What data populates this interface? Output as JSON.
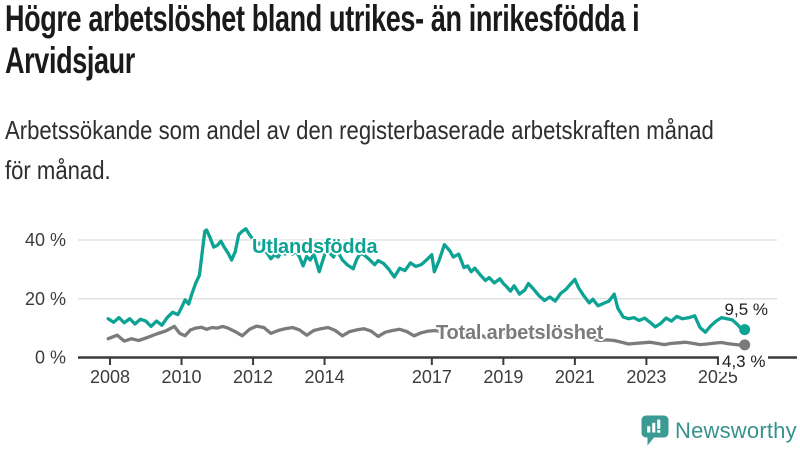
{
  "header": {
    "title": "Högre arbetslöshet bland utrikes- än inrikesfödda i\nArvidsjaur",
    "subtitle": "Arbetssökande som andel av den registerbaserade arbetskraften månad\nför månad."
  },
  "footer": {
    "brand": "Newsworthy",
    "logo_icon": "bar-chart-speech-bubble-icon"
  },
  "colors": {
    "accent_teal": "#0DA394",
    "series_gray": "#7B7B7B",
    "grid": "#dcdcdc",
    "axis": "#3A3A3A",
    "axis_text": "#3c3c3c",
    "logo_teal": "#3B9A93"
  },
  "chart_data": {
    "type": "line",
    "title": "Högre arbetslöshet bland utrikes- än inrikesfödda i Arvidsjaur",
    "subtitle": "Arbetssökande som andel av den registerbaserade arbetskraften månad för månad.",
    "grid": "horizontal",
    "legend_position": "inline-labels",
    "x_axis": {
      "unit": "year",
      "ticks": [
        2008,
        2010,
        2012,
        2014,
        2017,
        2019,
        2021,
        2023,
        2025
      ],
      "range": [
        2007.6,
        2025.9
      ]
    },
    "y_axis": {
      "unit": "%",
      "ticks": [
        {
          "value": 0,
          "label": "0 %"
        },
        {
          "value": 20,
          "label": "20 %"
        },
        {
          "value": 40,
          "label": "40 %"
        }
      ],
      "range": [
        0,
        46
      ]
    },
    "series": [
      {
        "name": "Utlandsfödda",
        "color": "#0DA394",
        "end_label": "9,5 %",
        "last_value": 9.5,
        "points": [
          [
            2007.95,
            13.2
          ],
          [
            2008.1,
            12.0
          ],
          [
            2008.25,
            13.6
          ],
          [
            2008.4,
            11.8
          ],
          [
            2008.55,
            13.2
          ],
          [
            2008.7,
            11.4
          ],
          [
            2008.85,
            13.0
          ],
          [
            2009.0,
            12.4
          ],
          [
            2009.15,
            10.6
          ],
          [
            2009.3,
            12.4
          ],
          [
            2009.45,
            11.0
          ],
          [
            2009.6,
            13.6
          ],
          [
            2009.75,
            15.4
          ],
          [
            2009.9,
            14.6
          ],
          [
            2010.0,
            17.0
          ],
          [
            2010.1,
            19.6
          ],
          [
            2010.2,
            18.2
          ],
          [
            2010.3,
            22.0
          ],
          [
            2010.4,
            25.4
          ],
          [
            2010.5,
            28.0
          ],
          [
            2010.55,
            33.0
          ],
          [
            2010.65,
            43.0
          ],
          [
            2010.7,
            43.4
          ],
          [
            2010.8,
            40.8
          ],
          [
            2010.9,
            37.6
          ],
          [
            2011.0,
            38.2
          ],
          [
            2011.1,
            39.6
          ],
          [
            2011.2,
            37.4
          ],
          [
            2011.3,
            35.6
          ],
          [
            2011.4,
            33.2
          ],
          [
            2011.5,
            36.0
          ],
          [
            2011.6,
            41.8
          ],
          [
            2011.7,
            43.0
          ],
          [
            2011.8,
            43.8
          ],
          [
            2011.9,
            41.8
          ],
          [
            2012.0,
            40.2
          ],
          [
            2012.1,
            38.2
          ],
          [
            2012.2,
            39.0
          ],
          [
            2012.3,
            37.0
          ],
          [
            2012.4,
            35.4
          ],
          [
            2012.5,
            33.6
          ],
          [
            2012.6,
            35.0
          ],
          [
            2012.7,
            34.2
          ],
          [
            2012.8,
            36.0
          ],
          [
            2012.9,
            35.2
          ],
          [
            2013.0,
            36.4
          ],
          [
            2013.1,
            35.2
          ],
          [
            2013.2,
            36.2
          ],
          [
            2013.3,
            34.2
          ],
          [
            2013.4,
            31.2
          ],
          [
            2013.5,
            34.4
          ],
          [
            2013.6,
            33.2
          ],
          [
            2013.7,
            35.4
          ],
          [
            2013.85,
            29.2
          ],
          [
            2014.0,
            35.0
          ],
          [
            2014.1,
            36.2
          ],
          [
            2014.25,
            34.2
          ],
          [
            2014.35,
            36.4
          ],
          [
            2014.5,
            33.2
          ],
          [
            2014.65,
            31.4
          ],
          [
            2014.8,
            30.2
          ],
          [
            2014.9,
            33.4
          ],
          [
            2015.0,
            35.4
          ],
          [
            2015.1,
            35.0
          ],
          [
            2015.25,
            33.4
          ],
          [
            2015.4,
            31.6
          ],
          [
            2015.5,
            33.0
          ],
          [
            2015.65,
            32.0
          ],
          [
            2015.8,
            30.0
          ],
          [
            2015.95,
            27.4
          ],
          [
            2016.1,
            30.4
          ],
          [
            2016.25,
            29.6
          ],
          [
            2016.4,
            32.2
          ],
          [
            2016.55,
            31.0
          ],
          [
            2016.7,
            31.6
          ],
          [
            2016.85,
            33.2
          ],
          [
            2017.0,
            35.0
          ],
          [
            2017.07,
            29.2
          ],
          [
            2017.2,
            33.0
          ],
          [
            2017.35,
            38.4
          ],
          [
            2017.5,
            36.4
          ],
          [
            2017.6,
            34.2
          ],
          [
            2017.75,
            35.2
          ],
          [
            2017.9,
            30.6
          ],
          [
            2018.0,
            31.2
          ],
          [
            2018.1,
            29.2
          ],
          [
            2018.2,
            30.4
          ],
          [
            2018.35,
            28.2
          ],
          [
            2018.5,
            26.2
          ],
          [
            2018.6,
            27.2
          ],
          [
            2018.75,
            25.4
          ],
          [
            2018.9,
            26.8
          ],
          [
            2019.0,
            25.2
          ],
          [
            2019.1,
            24.0
          ],
          [
            2019.2,
            22.6
          ],
          [
            2019.3,
            24.4
          ],
          [
            2019.45,
            21.6
          ],
          [
            2019.6,
            23.0
          ],
          [
            2019.7,
            25.2
          ],
          [
            2019.85,
            23.2
          ],
          [
            2020.0,
            21.0
          ],
          [
            2020.15,
            19.4
          ],
          [
            2020.3,
            20.6
          ],
          [
            2020.45,
            19.2
          ],
          [
            2020.6,
            21.8
          ],
          [
            2020.75,
            23.2
          ],
          [
            2020.85,
            24.6
          ],
          [
            2021.0,
            26.6
          ],
          [
            2021.1,
            23.8
          ],
          [
            2021.25,
            21.0
          ],
          [
            2021.4,
            18.6
          ],
          [
            2021.5,
            19.8
          ],
          [
            2021.65,
            17.6
          ],
          [
            2021.8,
            18.4
          ],
          [
            2021.95,
            19.2
          ],
          [
            2022.1,
            21.6
          ],
          [
            2022.2,
            16.8
          ],
          [
            2022.35,
            13.8
          ],
          [
            2022.5,
            13.2
          ],
          [
            2022.65,
            13.6
          ],
          [
            2022.8,
            12.6
          ],
          [
            2022.95,
            13.4
          ],
          [
            2023.1,
            12.0
          ],
          [
            2023.25,
            10.4
          ],
          [
            2023.4,
            11.6
          ],
          [
            2023.55,
            13.4
          ],
          [
            2023.7,
            12.4
          ],
          [
            2023.85,
            14.0
          ],
          [
            2024.0,
            13.2
          ],
          [
            2024.2,
            13.6
          ],
          [
            2024.35,
            14.2
          ],
          [
            2024.5,
            10.2
          ],
          [
            2024.65,
            8.6
          ],
          [
            2024.8,
            10.8
          ],
          [
            2024.95,
            12.4
          ],
          [
            2025.1,
            13.6
          ],
          [
            2025.25,
            13.2
          ],
          [
            2025.4,
            12.8
          ],
          [
            2025.55,
            11.2
          ],
          [
            2025.65,
            9.8
          ],
          [
            2025.75,
            9.5
          ]
        ]
      },
      {
        "name": "Total arbetslöshet",
        "color": "#7B7B7B",
        "end_label": "4,3 %",
        "last_value": 4.3,
        "points": [
          [
            2007.95,
            6.4
          ],
          [
            2008.2,
            7.6
          ],
          [
            2008.4,
            5.6
          ],
          [
            2008.6,
            6.4
          ],
          [
            2008.8,
            5.8
          ],
          [
            2009.0,
            6.6
          ],
          [
            2009.3,
            8.0
          ],
          [
            2009.55,
            9.0
          ],
          [
            2009.8,
            10.6
          ],
          [
            2009.95,
            8.2
          ],
          [
            2010.1,
            7.4
          ],
          [
            2010.25,
            9.4
          ],
          [
            2010.4,
            10.0
          ],
          [
            2010.55,
            10.3
          ],
          [
            2010.7,
            9.6
          ],
          [
            2010.85,
            10.2
          ],
          [
            2011.0,
            10.0
          ],
          [
            2011.15,
            10.6
          ],
          [
            2011.3,
            10.0
          ],
          [
            2011.5,
            8.8
          ],
          [
            2011.7,
            7.4
          ],
          [
            2011.9,
            9.6
          ],
          [
            2012.1,
            10.7
          ],
          [
            2012.3,
            10.2
          ],
          [
            2012.5,
            8.2
          ],
          [
            2012.7,
            9.2
          ],
          [
            2012.9,
            9.8
          ],
          [
            2013.1,
            10.2
          ],
          [
            2013.3,
            9.4
          ],
          [
            2013.5,
            7.6
          ],
          [
            2013.7,
            9.2
          ],
          [
            2013.9,
            9.8
          ],
          [
            2014.1,
            10.2
          ],
          [
            2014.3,
            9.2
          ],
          [
            2014.5,
            7.4
          ],
          [
            2014.7,
            8.8
          ],
          [
            2014.9,
            9.4
          ],
          [
            2015.1,
            9.8
          ],
          [
            2015.3,
            9.0
          ],
          [
            2015.5,
            7.2
          ],
          [
            2015.7,
            8.6
          ],
          [
            2015.9,
            9.2
          ],
          [
            2016.1,
            9.6
          ],
          [
            2016.3,
            8.8
          ],
          [
            2016.5,
            7.4
          ],
          [
            2016.7,
            8.4
          ],
          [
            2016.9,
            9.0
          ],
          [
            2017.1,
            9.2
          ],
          [
            2017.3,
            8.6
          ],
          [
            2017.5,
            7.2
          ],
          [
            2017.7,
            8.2
          ],
          [
            2017.9,
            8.8
          ],
          [
            2018.1,
            9.0
          ],
          [
            2018.3,
            8.2
          ],
          [
            2018.5,
            6.8
          ],
          [
            2018.7,
            7.8
          ],
          [
            2018.9,
            8.2
          ],
          [
            2019.1,
            8.4
          ],
          [
            2019.3,
            7.8
          ],
          [
            2019.5,
            6.6
          ],
          [
            2019.7,
            7.6
          ],
          [
            2019.9,
            8.0
          ],
          [
            2020.1,
            8.4
          ],
          [
            2020.3,
            8.8
          ],
          [
            2020.5,
            9.2
          ],
          [
            2020.7,
            8.6
          ],
          [
            2020.9,
            8.2
          ],
          [
            2021.1,
            8.0
          ],
          [
            2021.3,
            7.2
          ],
          [
            2021.5,
            6.2
          ],
          [
            2021.7,
            5.8
          ],
          [
            2021.9,
            6.0
          ],
          [
            2022.1,
            5.8
          ],
          [
            2022.3,
            5.2
          ],
          [
            2022.5,
            4.6
          ],
          [
            2022.7,
            4.8
          ],
          [
            2022.9,
            5.0
          ],
          [
            2023.1,
            5.2
          ],
          [
            2023.3,
            4.8
          ],
          [
            2023.5,
            4.4
          ],
          [
            2023.7,
            4.8
          ],
          [
            2023.9,
            5.0
          ],
          [
            2024.1,
            5.2
          ],
          [
            2024.3,
            4.8
          ],
          [
            2024.5,
            4.4
          ],
          [
            2024.7,
            4.6
          ],
          [
            2024.9,
            4.9
          ],
          [
            2025.1,
            5.1
          ],
          [
            2025.3,
            4.7
          ],
          [
            2025.5,
            4.4
          ],
          [
            2025.65,
            4.2
          ],
          [
            2025.75,
            4.3
          ]
        ]
      }
    ]
  }
}
